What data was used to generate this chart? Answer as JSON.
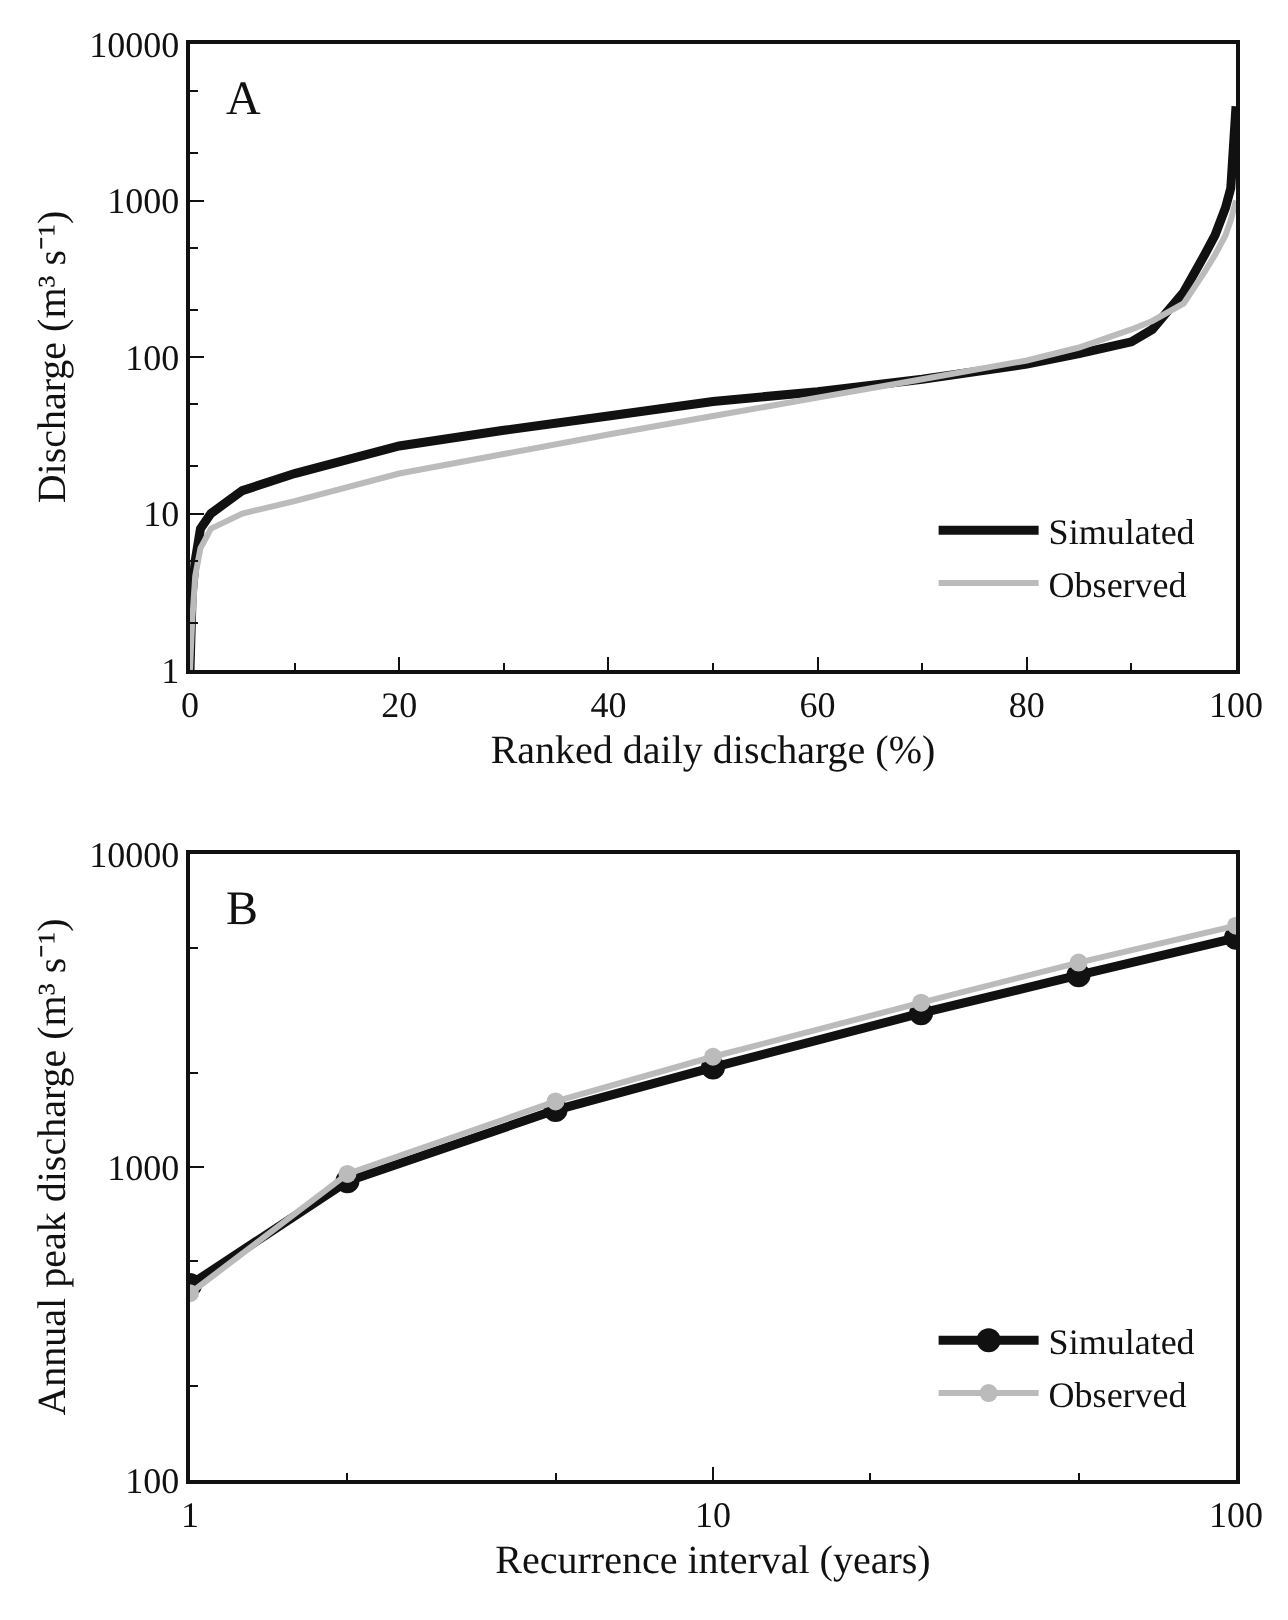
{
  "chart_data": [
    {
      "type": "line",
      "xlabel": "Ranked daily discharge (%)",
      "ylabel": "Discharge (m³ s⁻¹)",
      "annotations": [
        "A"
      ],
      "log": "y",
      "xlim": [
        0,
        100
      ],
      "xticks": [
        0,
        20,
        40,
        60,
        80,
        100
      ],
      "ylim": [
        1,
        10000
      ],
      "yticks": [
        1,
        10,
        100,
        1000,
        10000
      ],
      "grid": false,
      "legend": "bottom right",
      "marker": "none",
      "line_style": "solid",
      "series": [
        {
          "name": "Simulated",
          "color": "#111111",
          "x": [
            0,
            0.2,
            0.5,
            1,
            2,
            5,
            10,
            20,
            30,
            40,
            50,
            60,
            70,
            80,
            85,
            90,
            92,
            95,
            97,
            98,
            99,
            99.5,
            100
          ],
          "values": [
            1,
            3,
            5,
            8,
            10,
            14,
            18,
            27,
            34,
            42,
            52,
            60,
            72,
            90,
            105,
            125,
            150,
            260,
            450,
            600,
            900,
            1200,
            4000
          ]
        },
        {
          "name": "Observed",
          "color": "#bbbbbb",
          "x": [
            0,
            0.2,
            0.5,
            1,
            2,
            5,
            10,
            20,
            30,
            40,
            50,
            60,
            70,
            80,
            85,
            90,
            92,
            95,
            97,
            98,
            99,
            99.5,
            100
          ],
          "values": [
            1,
            2,
            4,
            6,
            8,
            10,
            12,
            18,
            24,
            32,
            42,
            55,
            72,
            95,
            115,
            150,
            170,
            220,
            350,
            450,
            600,
            750,
            1000
          ]
        }
      ]
    },
    {
      "type": "line",
      "xlabel": "Recurrence interval (years)",
      "ylabel": "Annual peak discharge (m³ s⁻¹)",
      "annotations": [
        "B"
      ],
      "log": "xy",
      "xlim": [
        1,
        100
      ],
      "xticks": [
        1,
        10,
        100
      ],
      "ylim": [
        100,
        10000
      ],
      "yticks": [
        100,
        1000,
        10000
      ],
      "grid": false,
      "legend": "bottom right",
      "marker": "circle",
      "line_style": "solid",
      "series": [
        {
          "name": "Simulated",
          "color": "#111111",
          "x": [
            1,
            2,
            5,
            10,
            25,
            50,
            100
          ],
          "values": [
            420,
            900,
            1520,
            2080,
            3100,
            4100,
            5400
          ]
        },
        {
          "name": "Observed",
          "color": "#bbbbbb",
          "x": [
            1,
            2,
            5,
            10,
            25,
            50,
            100
          ],
          "values": [
            395,
            950,
            1620,
            2250,
            3350,
            4500,
            5900
          ]
        }
      ]
    }
  ]
}
